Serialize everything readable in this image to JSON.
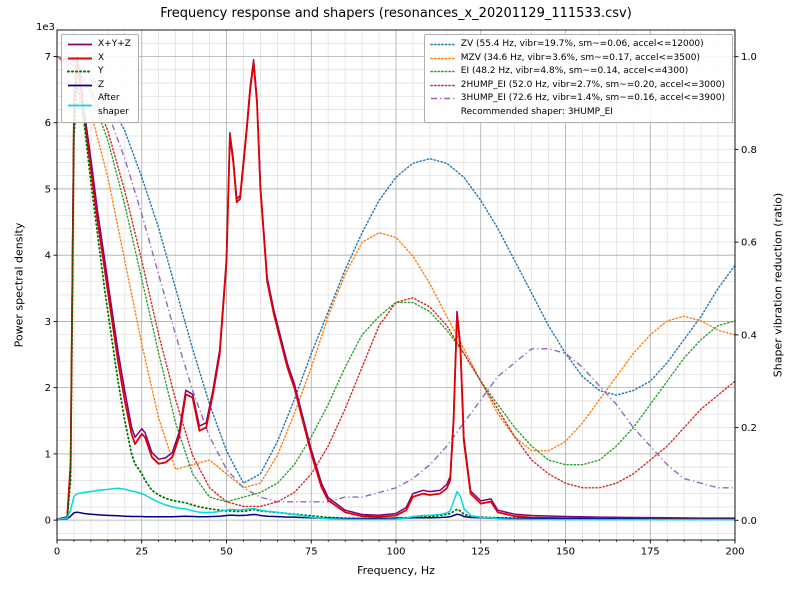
{
  "chart_data": {
    "type": "line",
    "title": "Frequency response and shapers (resonances_x_20201129_111533.csv)",
    "xlabel": "Frequency, Hz",
    "ylabel": "Power spectral density",
    "ylabel2": "Shaper vibration reduction (ratio)",
    "offset_text": "1e3",
    "grid": true,
    "xlim": [
      0,
      200
    ],
    "ylim_left": [
      -300,
      7400
    ],
    "ylim_right": [
      -0.0425,
      1.0575
    ],
    "x_ticks": [
      0,
      25,
      50,
      75,
      100,
      125,
      150,
      175,
      200
    ],
    "y_ticks_left": [
      0,
      1,
      2,
      3,
      4,
      5,
      6,
      7
    ],
    "y_ticks_right": [
      0.0,
      0.2,
      0.4,
      0.6,
      0.8,
      1.0
    ],
    "minor_x_step": 5,
    "minor_y_step": 200,
    "recommended_shaper_label": "Recommended shaper: 3HUMP_EI",
    "psd": {
      "x": [
        0,
        3,
        4,
        5,
        6,
        8,
        10,
        12,
        14,
        16,
        18,
        20,
        22,
        23,
        25,
        26,
        28,
        30,
        32,
        34,
        36,
        38,
        40,
        42,
        44,
        46,
        48,
        50,
        51,
        52,
        53,
        54,
        56,
        57,
        58,
        59,
        60,
        62,
        64,
        66,
        68,
        70,
        72,
        75,
        78,
        80,
        85,
        90,
        95,
        100,
        103,
        105,
        108,
        110,
        113,
        115,
        116,
        117,
        118,
        119,
        120,
        122,
        125,
        128,
        130,
        135,
        140,
        150,
        160,
        170,
        180,
        190,
        200
      ],
      "series": [
        {
          "name": "xyz",
          "label": "X+Y+Z",
          "color": "#800080",
          "style": "solid",
          "width": 1.5,
          "y": [
            15,
            50,
            900,
            6400,
            7000,
            6200,
            5450,
            4650,
            3950,
            3250,
            2550,
            1950,
            1400,
            1250,
            1380,
            1320,
            1020,
            920,
            940,
            1020,
            1320,
            1960,
            1900,
            1420,
            1470,
            1960,
            2570,
            3960,
            5850,
            5450,
            4850,
            4900,
            5950,
            6550,
            6950,
            6350,
            5060,
            3660,
            3160,
            2760,
            2360,
            2060,
            1660,
            1060,
            560,
            340,
            150,
            85,
            75,
            100,
            190,
            400,
            450,
            430,
            450,
            540,
            660,
            1560,
            3150,
            2650,
            1250,
            440,
            290,
            320,
            150,
            90,
            70,
            55,
            45,
            40,
            35,
            30,
            30
          ]
        },
        {
          "name": "x",
          "label": "X",
          "color": "#e00000",
          "style": "solid",
          "width": 1.8,
          "y": [
            10,
            40,
            800,
            6200,
            6900,
            6100,
            5300,
            4500,
            3800,
            3100,
            2400,
            1800,
            1300,
            1150,
            1300,
            1250,
            950,
            850,
            870,
            950,
            1250,
            1900,
            1850,
            1350,
            1400,
            1900,
            2500,
            3900,
            5800,
            5400,
            4800,
            4850,
            5900,
            6500,
            6900,
            6300,
            5000,
            3600,
            3100,
            2700,
            2300,
            2000,
            1600,
            1000,
            500,
            300,
            120,
            60,
            50,
            70,
            150,
            350,
            400,
            380,
            400,
            480,
            600,
            1500,
            3100,
            2600,
            1200,
            400,
            250,
            280,
            120,
            60,
            40,
            30,
            25,
            20,
            20,
            15,
            15
          ]
        },
        {
          "name": "y",
          "label": "Y",
          "color": "#007000",
          "style": "dots",
          "width": 1.8,
          "y": [
            10,
            30,
            600,
            5800,
            6600,
            6000,
            5100,
            4300,
            3500,
            2800,
            2100,
            1500,
            1000,
            850,
            700,
            600,
            450,
            380,
            330,
            300,
            280,
            260,
            230,
            200,
            180,
            165,
            150,
            140,
            140,
            135,
            130,
            130,
            140,
            150,
            160,
            150,
            140,
            130,
            120,
            110,
            100,
            90,
            80,
            65,
            50,
            40,
            30,
            25,
            25,
            30,
            35,
            45,
            50,
            55,
            70,
            90,
            100,
            130,
            160,
            140,
            90,
            60,
            45,
            40,
            35,
            30,
            25,
            20,
            20,
            18,
            15,
            15,
            15
          ]
        },
        {
          "name": "z",
          "label": "Z",
          "color": "#00008b",
          "style": "solid",
          "width": 1.5,
          "y": [
            10,
            20,
            60,
            110,
            120,
            100,
            90,
            80,
            75,
            70,
            65,
            60,
            55,
            55,
            55,
            50,
            50,
            50,
            50,
            50,
            55,
            60,
            55,
            50,
            50,
            55,
            60,
            70,
            75,
            75,
            70,
            70,
            75,
            80,
            85,
            80,
            70,
            60,
            55,
            50,
            45,
            45,
            40,
            35,
            30,
            30,
            25,
            25,
            25,
            30,
            30,
            35,
            35,
            35,
            40,
            45,
            50,
            70,
            90,
            80,
            55,
            40,
            35,
            30,
            30,
            25,
            25,
            20,
            20,
            20,
            15,
            15,
            15
          ]
        },
        {
          "name": "after-shaper",
          "label": "After\nshaper",
          "color": "#00dbe0",
          "style": "solid",
          "width": 1.5,
          "y": [
            10,
            30,
            150,
            360,
            400,
            420,
            430,
            450,
            460,
            470,
            480,
            465,
            440,
            430,
            400,
            380,
            320,
            270,
            230,
            200,
            180,
            170,
            140,
            120,
            115,
            120,
            130,
            150,
            160,
            160,
            155,
            155,
            165,
            170,
            175,
            165,
            150,
            135,
            125,
            110,
            95,
            85,
            70,
            45,
            30,
            20,
            12,
            10,
            10,
            15,
            30,
            55,
            70,
            75,
            85,
            110,
            140,
            280,
            430,
            360,
            180,
            70,
            40,
            35,
            20,
            12,
            10,
            8,
            8,
            8,
            8,
            8,
            8
          ]
        }
      ]
    },
    "shapers": {
      "x": [
        0,
        5,
        10,
        15,
        20,
        25,
        30,
        35,
        40,
        45,
        50,
        55,
        60,
        65,
        70,
        75,
        80,
        85,
        90,
        95,
        100,
        105,
        110,
        115,
        120,
        125,
        130,
        135,
        140,
        145,
        150,
        155,
        160,
        165,
        170,
        175,
        180,
        185,
        190,
        195,
        200
      ],
      "series": [
        {
          "name": "zv",
          "label": "ZV (55.4 Hz, vibr=19.7%, sm~=0.06, accel<=12000)",
          "color": "#1f77b4",
          "style": "dotted",
          "width": 1.4,
          "y": [
            1.0,
            0.99,
            0.96,
            0.91,
            0.84,
            0.74,
            0.63,
            0.5,
            0.37,
            0.25,
            0.15,
            0.08,
            0.1,
            0.17,
            0.26,
            0.36,
            0.45,
            0.54,
            0.62,
            0.69,
            0.74,
            0.77,
            0.78,
            0.77,
            0.74,
            0.69,
            0.63,
            0.56,
            0.49,
            0.42,
            0.36,
            0.31,
            0.28,
            0.27,
            0.28,
            0.3,
            0.34,
            0.39,
            0.44,
            0.5,
            0.55
          ]
        },
        {
          "name": "mzv",
          "label": "MZV (34.6 Hz, vibr=3.6%, sm~=0.17, accel<=3500)",
          "color": "#ff7f0e",
          "style": "dotted",
          "width": 1.4,
          "y": [
            1.0,
            0.97,
            0.88,
            0.74,
            0.56,
            0.38,
            0.22,
            0.11,
            0.12,
            0.13,
            0.1,
            0.07,
            0.08,
            0.14,
            0.23,
            0.33,
            0.44,
            0.53,
            0.6,
            0.62,
            0.61,
            0.57,
            0.51,
            0.44,
            0.37,
            0.3,
            0.23,
            0.18,
            0.15,
            0.15,
            0.17,
            0.21,
            0.26,
            0.31,
            0.36,
            0.4,
            0.43,
            0.44,
            0.43,
            0.41,
            0.4
          ]
        },
        {
          "name": "ei",
          "label": "EI (48.2 Hz, vibr=4.8%, sm~=0.14, accel<=4300)",
          "color": "#2ca02c",
          "style": "dotted",
          "width": 1.4,
          "y": [
            1.0,
            0.98,
            0.92,
            0.82,
            0.68,
            0.52,
            0.36,
            0.21,
            0.1,
            0.05,
            0.04,
            0.05,
            0.06,
            0.08,
            0.12,
            0.18,
            0.25,
            0.33,
            0.4,
            0.44,
            0.47,
            0.47,
            0.45,
            0.41,
            0.36,
            0.3,
            0.25,
            0.2,
            0.16,
            0.13,
            0.12,
            0.12,
            0.13,
            0.16,
            0.2,
            0.25,
            0.3,
            0.35,
            0.39,
            0.42,
            0.43
          ]
        },
        {
          "name": "2hump-ei",
          "label": "2HUMP_EI (52.0 Hz, vibr=2.7%, sm~=0.20, accel<=3000)",
          "color": "#d62728",
          "style": "dotted",
          "width": 1.4,
          "y": [
            1.0,
            0.98,
            0.93,
            0.84,
            0.71,
            0.56,
            0.4,
            0.26,
            0.14,
            0.07,
            0.04,
            0.03,
            0.03,
            0.04,
            0.06,
            0.1,
            0.16,
            0.24,
            0.33,
            0.42,
            0.47,
            0.48,
            0.46,
            0.42,
            0.36,
            0.3,
            0.24,
            0.18,
            0.13,
            0.1,
            0.08,
            0.07,
            0.07,
            0.08,
            0.1,
            0.13,
            0.16,
            0.2,
            0.24,
            0.27,
            0.3
          ]
        },
        {
          "name": "3hump-ei",
          "label": "3HUMP_EI (72.6 Hz, vibr=1.4%, sm~=0.16, accel<=3900)",
          "color": "#9467bd",
          "style": "dashdot",
          "width": 1.4,
          "y": [
            1.0,
            0.99,
            0.95,
            0.88,
            0.78,
            0.66,
            0.53,
            0.4,
            0.28,
            0.18,
            0.11,
            0.07,
            0.05,
            0.04,
            0.04,
            0.04,
            0.04,
            0.05,
            0.05,
            0.06,
            0.07,
            0.09,
            0.12,
            0.16,
            0.21,
            0.26,
            0.31,
            0.34,
            0.37,
            0.37,
            0.36,
            0.33,
            0.29,
            0.25,
            0.2,
            0.16,
            0.12,
            0.09,
            0.08,
            0.07,
            0.07
          ]
        }
      ]
    }
  }
}
